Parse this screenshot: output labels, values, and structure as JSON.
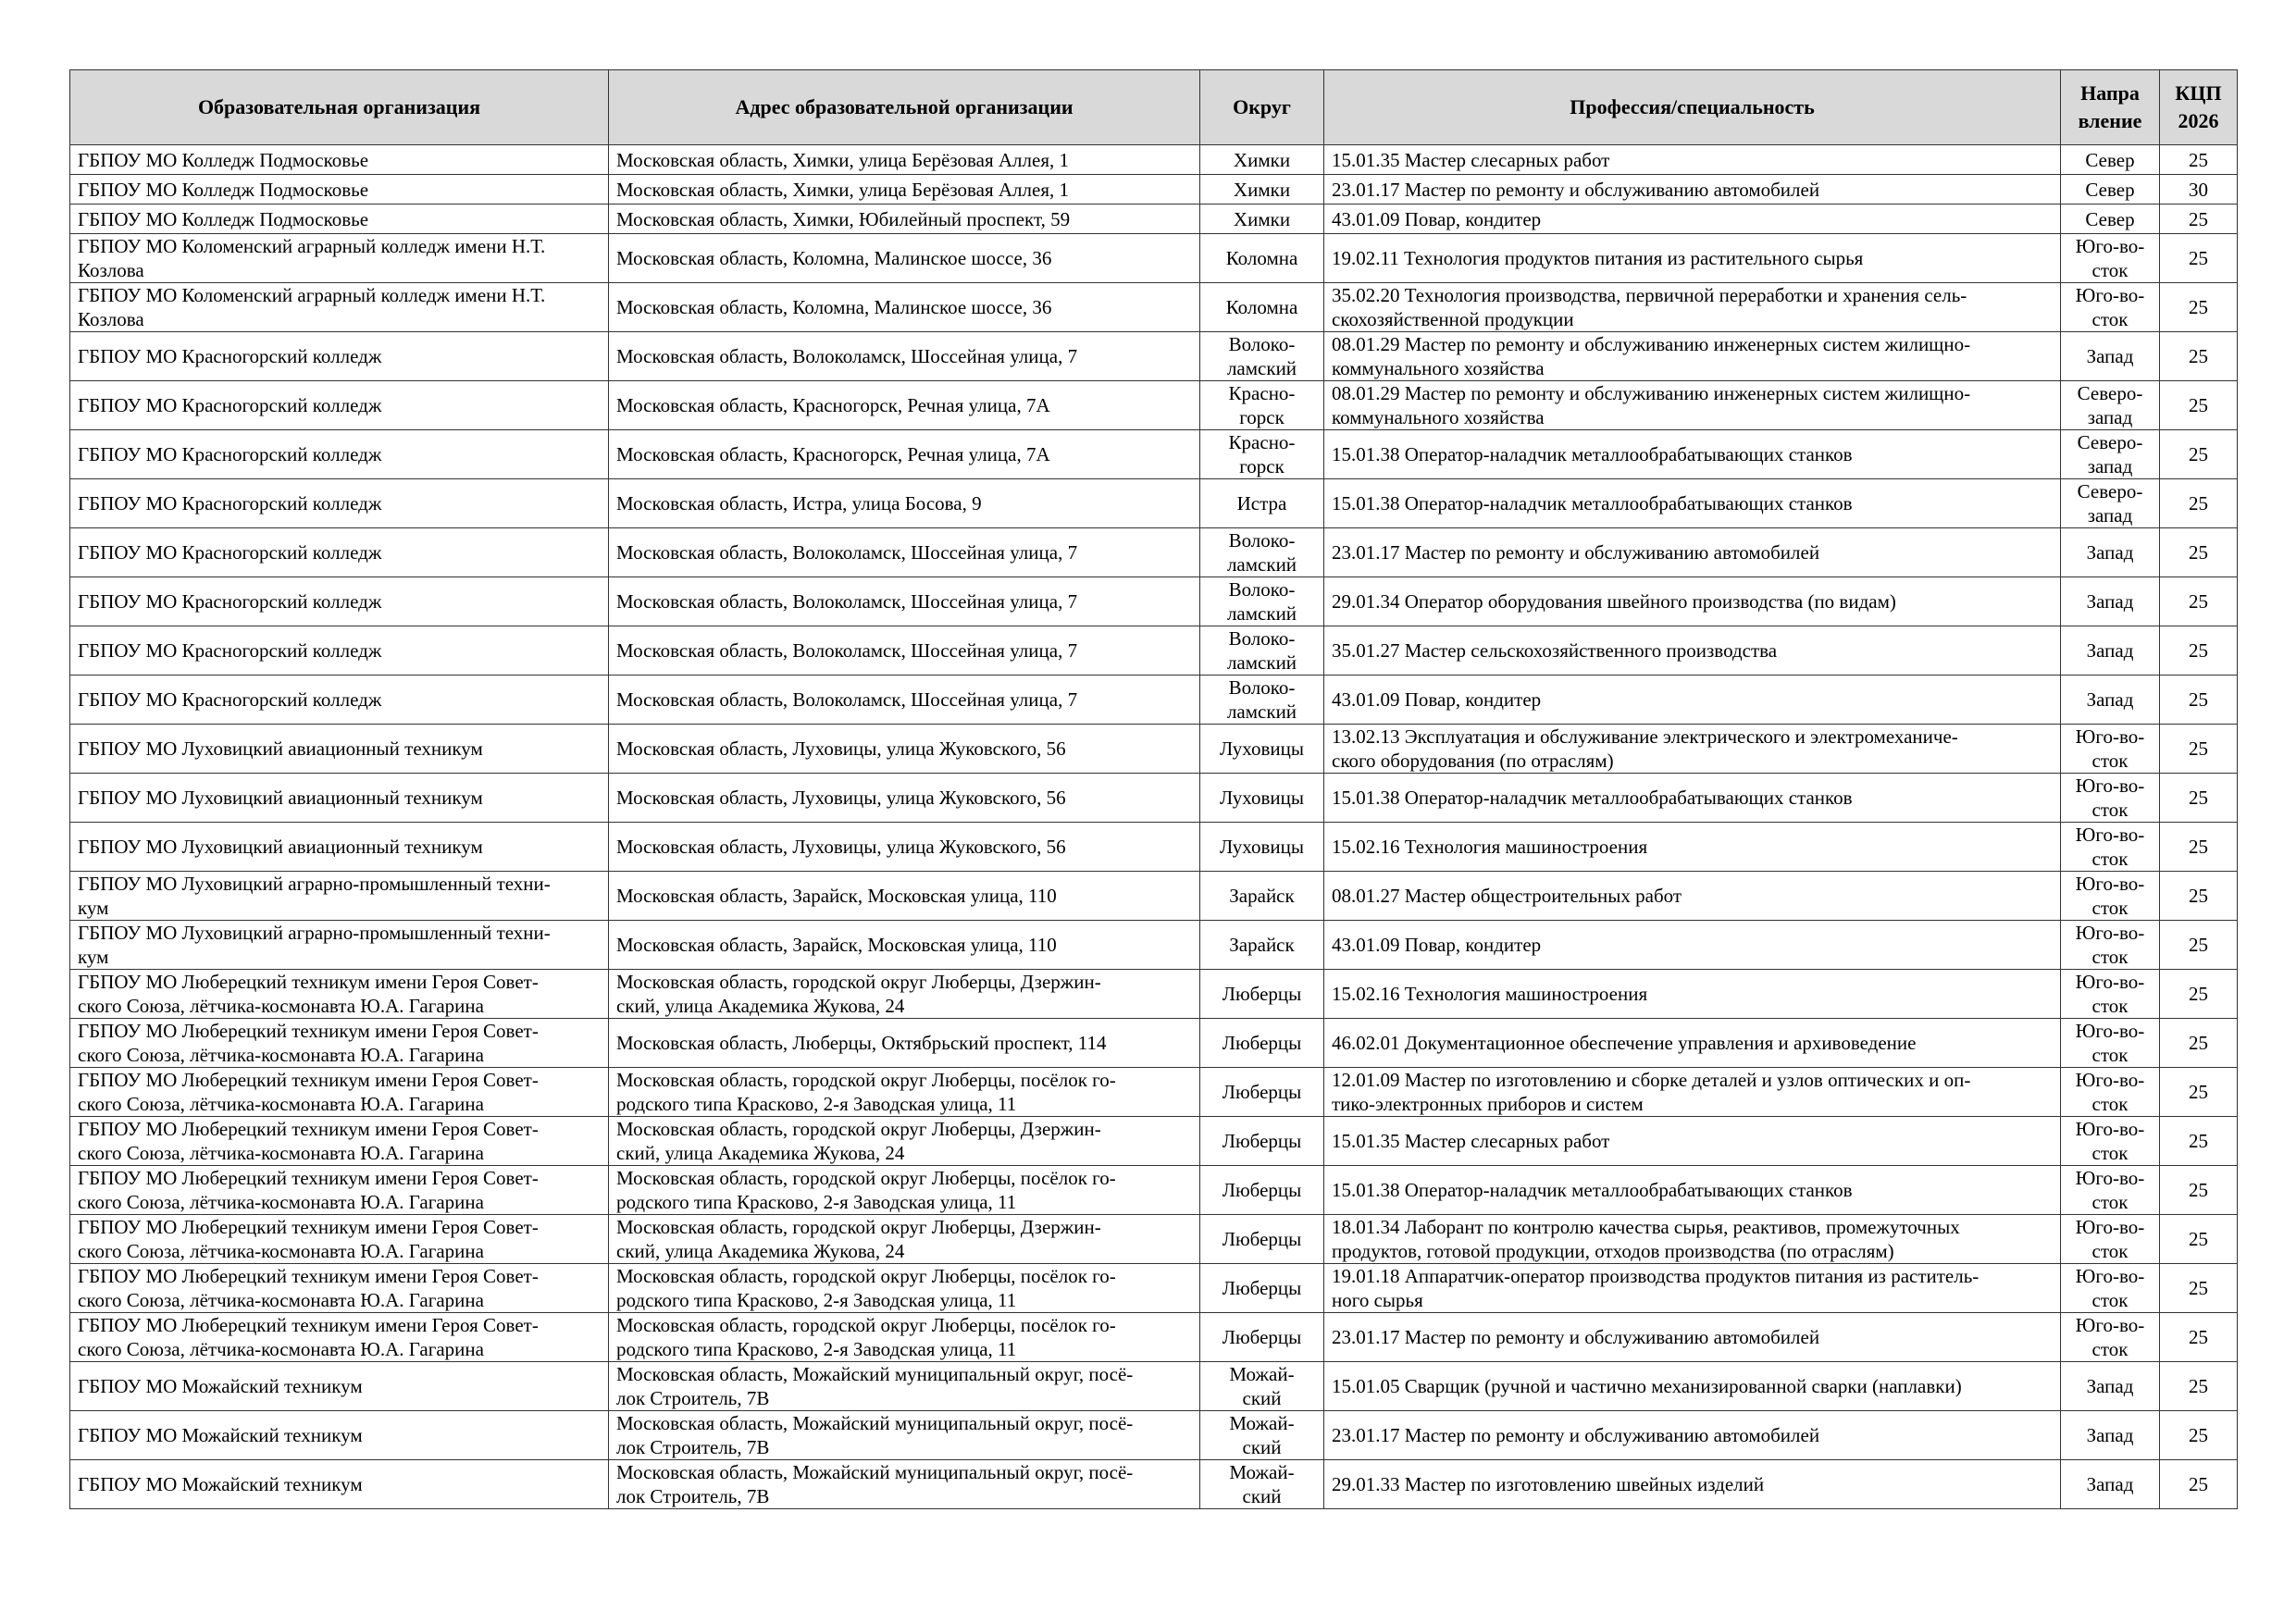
{
  "headers": [
    "Образовательная организация",
    "Адрес образовательной организации",
    "Округ",
    "Профессия/специальность",
    "Напра\nвление",
    "КЦП\n2026"
  ],
  "rows": [
    [
      "ГБПОУ МО Колледж Подмосковье",
      "Московская область, Химки, улица Берёзовая Аллея, 1",
      "Химки",
      "15.01.35 Мастер слесарных работ",
      "Север",
      "25"
    ],
    [
      "ГБПОУ МО Колледж Подмосковье",
      "Московская область, Химки, улица Берёзовая Аллея, 1",
      "Химки",
      "23.01.17 Мастер по ремонту и обслуживанию автомобилей",
      "Север",
      "30"
    ],
    [
      "ГБПОУ МО Колледж Подмосковье",
      "Московская область, Химки, Юбилейный проспект, 59",
      "Химки",
      "43.01.09 Повар, кондитер",
      "Север",
      "25"
    ],
    [
      "ГБПОУ МО Коломенский аграрный колледж имени Н.Т.\nКозлова",
      "Московская область, Коломна, Малинское шоссе, 36",
      "Коломна",
      "19.02.11 Технология продуктов питания из растительного сырья",
      "Юго-во-\nсток",
      "25"
    ],
    [
      "ГБПОУ МО Коломенский аграрный колледж имени Н.Т.\nКозлова",
      "Московская область, Коломна, Малинское шоссе, 36",
      "Коломна",
      "35.02.20 Технология производства, первичной переработки и хранения сель-\nскохозяйственной продукции",
      "Юго-во-\nсток",
      "25"
    ],
    [
      "ГБПОУ МО Красногорский колледж",
      "Московская область, Волоколамск, Шоссейная улица, 7",
      "Волоко-\nламский",
      "08.01.29 Мастер по ремонту и обслуживанию инженерных систем жилищно-\nкоммунального хозяйства",
      "Запад",
      "25"
    ],
    [
      "ГБПОУ МО Красногорский колледж",
      "Московская область, Красногорск, Речная улица, 7А",
      "Красно-\nгорск",
      "08.01.29 Мастер по ремонту и обслуживанию инженерных систем жилищно-\nкоммунального хозяйства",
      "Северо-\nзапад",
      "25"
    ],
    [
      "ГБПОУ МО Красногорский колледж",
      "Московская область, Красногорск, Речная улица, 7А",
      "Красно-\nгорск",
      "15.01.38 Оператор-наладчик металлообрабатывающих станков",
      "Северо-\nзапад",
      "25"
    ],
    [
      "ГБПОУ МО Красногорский колледж",
      "Московская область, Истра, улица Босова, 9",
      "Истра",
      "15.01.38 Оператор-наладчик металлообрабатывающих станков",
      "Северо-\nзапад",
      "25"
    ],
    [
      "ГБПОУ МО Красногорский колледж",
      "Московская область, Волоколамск, Шоссейная улица, 7",
      "Волоко-\nламский",
      "23.01.17 Мастер по ремонту и обслуживанию автомобилей",
      "Запад",
      "25"
    ],
    [
      "ГБПОУ МО Красногорский колледж",
      "Московская область, Волоколамск, Шоссейная улица, 7",
      "Волоко-\nламский",
      "29.01.34 Оператор оборудования швейного производства (по видам)",
      "Запад",
      "25"
    ],
    [
      "ГБПОУ МО Красногорский колледж",
      "Московская область, Волоколамск, Шоссейная улица, 7",
      "Волоко-\nламский",
      "35.01.27 Мастер сельскохозяйственного производства",
      "Запад",
      "25"
    ],
    [
      "ГБПОУ МО Красногорский колледж",
      "Московская область, Волоколамск, Шоссейная улица, 7",
      "Волоко-\nламский",
      "43.01.09 Повар, кондитер",
      "Запад",
      "25"
    ],
    [
      "ГБПОУ МО Луховицкий авиационный техникум",
      "Московская область, Луховицы, улица Жуковского, 56",
      "Луховицы",
      "13.02.13 Эксплуатация и обслуживание электрического и электромеханиче-\nского оборудования (по отраслям)",
      "Юго-во-\nсток",
      "25"
    ],
    [
      "ГБПОУ МО Луховицкий авиационный техникум",
      "Московская область, Луховицы, улица Жуковского, 56",
      "Луховицы",
      "15.01.38 Оператор-наладчик металлообрабатывающих станков",
      "Юго-во-\nсток",
      "25"
    ],
    [
      "ГБПОУ МО Луховицкий авиационный техникум",
      "Московская область, Луховицы, улица Жуковского, 56",
      "Луховицы",
      "15.02.16 Технология машиностроения",
      "Юго-во-\nсток",
      "25"
    ],
    [
      "ГБПОУ МО Луховицкий аграрно-промышленный техни-\nкум",
      "Московская область, Зарайск, Московская улица, 110",
      "Зарайск",
      "08.01.27 Мастер общестроительных работ",
      "Юго-во-\nсток",
      "25"
    ],
    [
      "ГБПОУ МО Луховицкий аграрно-промышленный техни-\nкум",
      "Московская область, Зарайск, Московская улица, 110",
      "Зарайск",
      "43.01.09 Повар, кондитер",
      "Юго-во-\nсток",
      "25"
    ],
    [
      "ГБПОУ МО Люберецкий техникум имени Героя Совет-\nского Союза, лётчика-космонавта Ю.А. Гагарина",
      "Московская область, городской округ Люберцы, Дзержин-\nский, улица Академика Жукова, 24",
      "Люберцы",
      "15.02.16 Технология машиностроения",
      "Юго-во-\nсток",
      "25"
    ],
    [
      "ГБПОУ МО Люберецкий техникум имени Героя Совет-\nского Союза, лётчика-космонавта Ю.А. Гагарина",
      "Московская область, Люберцы, Октябрьский проспект, 114",
      "Люберцы",
      "46.02.01 Документационное обеспечение управления и архивоведение",
      "Юго-во-\nсток",
      "25"
    ],
    [
      "ГБПОУ МО Люберецкий техникум имени Героя Совет-\nского Союза, лётчика-космонавта Ю.А. Гагарина",
      "Московская область, городской округ Люберцы, посёлок го-\nродского типа Красково, 2-я Заводская улица, 11",
      "Люберцы",
      "12.01.09 Мастер по изготовлению и сборке деталей и узлов оптических и оп-\nтико-электронных приборов и систем",
      "Юго-во-\nсток",
      "25"
    ],
    [
      "ГБПОУ МО Люберецкий техникум имени Героя Совет-\nского Союза, лётчика-космонавта Ю.А. Гагарина",
      "Московская область, городской округ Люберцы, Дзержин-\nский, улица Академика Жукова, 24",
      "Люберцы",
      "15.01.35 Мастер слесарных работ",
      "Юго-во-\nсток",
      "25"
    ],
    [
      "ГБПОУ МО Люберецкий техникум имени Героя Совет-\nского Союза, лётчика-космонавта Ю.А. Гагарина",
      "Московская область, городской округ Люберцы, посёлок го-\nродского типа Красково, 2-я Заводская улица, 11",
      "Люберцы",
      "15.01.38 Оператор-наладчик металлообрабатывающих станков",
      "Юго-во-\nсток",
      "25"
    ],
    [
      "ГБПОУ МО Люберецкий техникум имени Героя Совет-\nского Союза, лётчика-космонавта Ю.А. Гагарина",
      "Московская область, городской округ Люберцы, Дзержин-\nский, улица Академика Жукова, 24",
      "Люберцы",
      "18.01.34 Лаборант по контролю качества сырья, реактивов, промежуточных\nпродуктов, готовой продукции, отходов производства (по отраслям)",
      "Юго-во-\nсток",
      "25"
    ],
    [
      "ГБПОУ МО Люберецкий техникум имени Героя Совет-\nского Союза, лётчика-космонавта Ю.А. Гагарина",
      "Московская область, городской округ Люберцы, посёлок го-\nродского типа Красково, 2-я Заводская улица, 11",
      "Люберцы",
      "19.01.18 Аппаратчик-оператор производства продуктов питания из раститель-\nного сырья",
      "Юго-во-\nсток",
      "25"
    ],
    [
      "ГБПОУ МО Люберецкий техникум имени Героя Совет-\nского Союза, лётчика-космонавта Ю.А. Гагарина",
      "Московская область, городской округ Люберцы, посёлок го-\nродского типа Красково, 2-я Заводская улица, 11",
      "Люберцы",
      "23.01.17 Мастер по ремонту и обслуживанию автомобилей",
      "Юго-во-\nсток",
      "25"
    ],
    [
      "ГБПОУ МО Можайский техникум",
      "Московская область, Можайский муниципальный округ, посё-\nлок Строитель, 7В",
      "Можай-\nский",
      "15.01.05 Сварщик (ручной и частично механизированной сварки (наплавки)",
      "Запад",
      "25"
    ],
    [
      "ГБПОУ МО Можайский техникум",
      "Московская область, Можайский муниципальный округ, посё-\nлок Строитель, 7В",
      "Можай-\nский",
      "23.01.17 Мастер по ремонту и обслуживанию автомобилей",
      "Запад",
      "25"
    ],
    [
      "ГБПОУ МО Можайский техникум",
      "Московская область, Можайский муниципальный округ, посё-\nлок Строитель, 7В",
      "Можай-\nский",
      "29.01.33 Мастер по изготовлению швейных изделий",
      "Запад",
      "25"
    ]
  ]
}
